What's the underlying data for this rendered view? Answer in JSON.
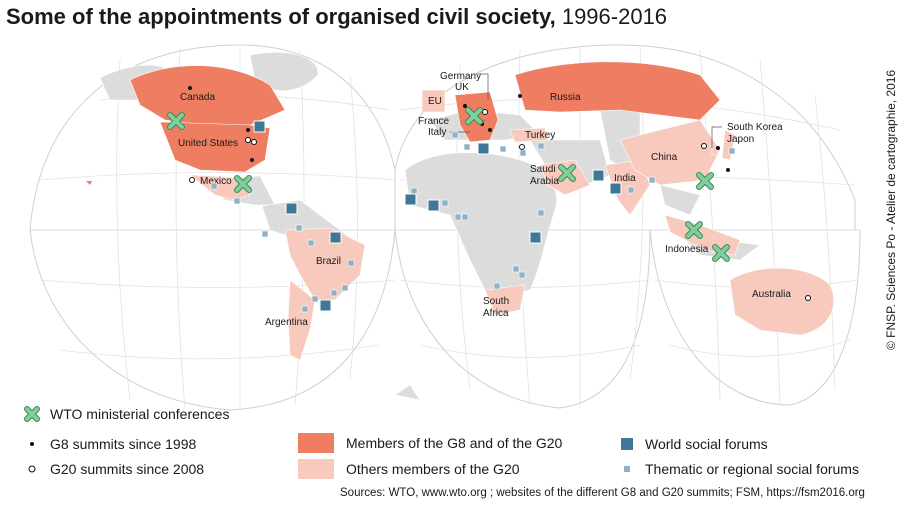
{
  "title": {
    "main": "Some of the appointments of organised civil society,",
    "years": "1996-2016"
  },
  "credit": "© FNSP. Sciences Po - Atelier de cartographie, 2016",
  "labels": {
    "canada": "Canada",
    "united_states": "United States",
    "mexico": "Mexico",
    "brazil": "Brazil",
    "argentina": "Argentina",
    "eu": "EU",
    "germany": "Germany",
    "uk": "UK",
    "france": "France",
    "italy": "Italy",
    "turkey": "Turkey",
    "russia": "Russia",
    "saudi_arabia_1": "Saudi",
    "saudi_arabia_2": "Arabia",
    "india": "India",
    "china": "China",
    "south_korea": "South Korea",
    "japan": "Japon",
    "indonesia": "Indonesia",
    "australia": "Australia",
    "south_africa_1": "South",
    "south_africa_2": "Africa"
  },
  "legend": {
    "wto": "WTO ministerial conferences",
    "g8": "G8 summits since 1998",
    "g20": "G20 summits since 2008",
    "members_g8_g20": "Members of the G8 and of the G20",
    "others_g20": "Others members of the G20",
    "wsf": "World social forums",
    "thematic": "Thematic or regional social forums"
  },
  "sources": "Sources: WTO, www.wto.org ; websites of the different G8 and G20 summits; FSM, https://fsm2016.org",
  "colors": {
    "g8_g20": "#ee7d62",
    "other_g20": "#f8c9bd",
    "land": "#dcdcdc",
    "wto_marker": "#6fc18e",
    "wsf_marker": "#3f7796",
    "thematic_marker": "#8fb2c8",
    "graticule": "#d0d0d0"
  }
}
